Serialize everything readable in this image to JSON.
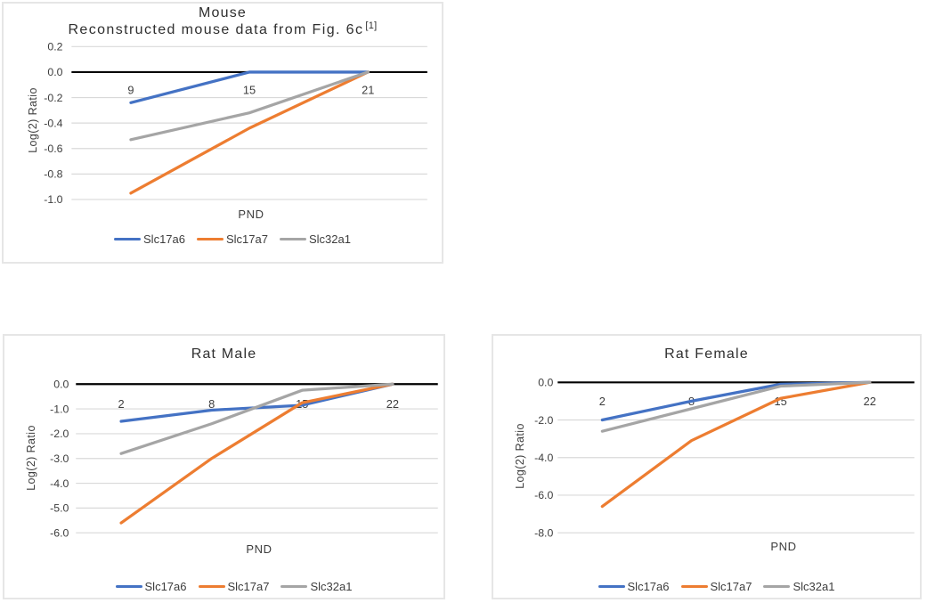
{
  "page": {
    "background": "#FFFFFF"
  },
  "colors": {
    "series_blue": "#4472C4",
    "series_orange": "#ED7D31",
    "series_gray": "#A5A5A5",
    "gridline": "#D9D9D9",
    "zero_axis": "#000000",
    "text": "#3D3D3D",
    "panel_border": "#E6E6E6"
  },
  "chart_data": [
    {
      "id": "mouse",
      "type": "line",
      "title": "Mouse",
      "subtitle": "Reconstructed mouse data from Fig. 6c",
      "subtitle_superscript": "[1]",
      "xlabel": "PND",
      "ylabel": "Log(2) Ratio",
      "categories": [
        9,
        15,
        21
      ],
      "series": [
        {
          "name": "Slc17a6",
          "color": "#4472C4",
          "values": [
            -0.24,
            0.0,
            0.0
          ]
        },
        {
          "name": "Slc17a7",
          "color": "#ED7D31",
          "values": [
            -0.95,
            -0.44,
            0.0
          ]
        },
        {
          "name": "Slc32a1",
          "color": "#A5A5A5",
          "values": [
            -0.53,
            -0.32,
            0.0
          ]
        }
      ],
      "ylim": [
        0.2,
        -1.0
      ],
      "yticks": [
        0.2,
        0.0,
        -0.2,
        -0.4,
        -0.6,
        -0.8,
        -1.0
      ],
      "ytick_labels": [
        "0.2",
        "0.0",
        "-0.2",
        "-0.4",
        "-0.6",
        "-0.8",
        "-1.0"
      ],
      "grid": true,
      "legend_position": "bottom"
    },
    {
      "id": "rat_male",
      "type": "line",
      "title": "Rat Male",
      "xlabel": "PND",
      "ylabel": "Log(2) Ratio",
      "categories": [
        2,
        8,
        15,
        22
      ],
      "series": [
        {
          "name": "Slc17a6",
          "color": "#4472C4",
          "values": [
            -1.5,
            -1.05,
            -0.85,
            0.0
          ]
        },
        {
          "name": "Slc17a7",
          "color": "#ED7D31",
          "values": [
            -5.6,
            -3.0,
            -0.75,
            0.0
          ]
        },
        {
          "name": "Slc32a1",
          "color": "#A5A5A5",
          "values": [
            -2.8,
            -1.6,
            -0.25,
            0.0
          ]
        }
      ],
      "ylim": [
        0.0,
        -6.0
      ],
      "yticks": [
        0.0,
        -1.0,
        -2.0,
        -3.0,
        -4.0,
        -5.0,
        -6.0
      ],
      "ytick_labels": [
        "0.0",
        "-1.0",
        "-2.0",
        "-3.0",
        "-4.0",
        "-5.0",
        "-6.0"
      ],
      "grid": true,
      "legend_position": "bottom"
    },
    {
      "id": "rat_female",
      "type": "line",
      "title": "Rat Female",
      "xlabel": "PND",
      "ylabel": "Log(2) Ratio",
      "categories": [
        2,
        8,
        15,
        22
      ],
      "series": [
        {
          "name": "Slc17a6",
          "color": "#4472C4",
          "values": [
            -2.0,
            -1.0,
            -0.1,
            0.0
          ]
        },
        {
          "name": "Slc17a7",
          "color": "#ED7D31",
          "values": [
            -6.6,
            -3.1,
            -0.85,
            0.0
          ]
        },
        {
          "name": "Slc32a1",
          "color": "#A5A5A5",
          "values": [
            -2.6,
            -1.4,
            -0.2,
            0.0
          ]
        }
      ],
      "ylim": [
        0.0,
        -8.0
      ],
      "yticks": [
        0.0,
        -2.0,
        -4.0,
        -6.0,
        -8.0
      ],
      "ytick_labels": [
        "0.0",
        "-2.0",
        "-4.0",
        "-6.0",
        "-8.0"
      ],
      "grid": true,
      "legend_position": "bottom"
    }
  ]
}
